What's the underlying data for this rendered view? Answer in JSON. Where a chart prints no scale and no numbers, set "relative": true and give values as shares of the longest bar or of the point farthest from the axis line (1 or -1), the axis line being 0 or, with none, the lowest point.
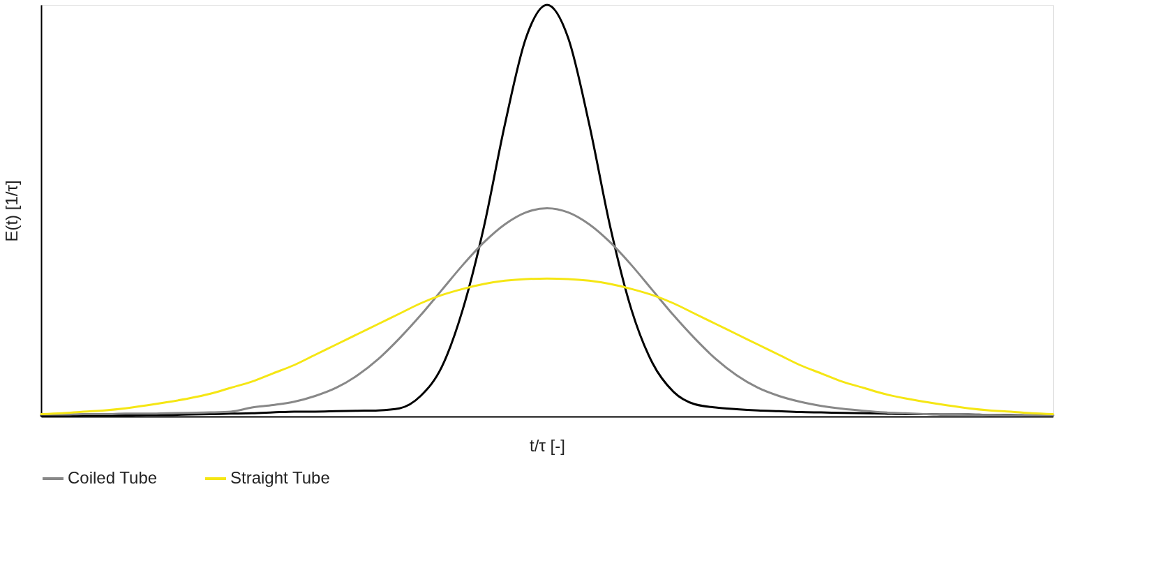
{
  "chart_data": {
    "type": "line",
    "relative": true,
    "xlabel": "t/τ [-]",
    "ylabel": "E(t) [1/τ]",
    "legend": "bottom",
    "grid": false,
    "line_style": "solid",
    "marker": "none",
    "categories": [
      null,
      null,
      null,
      null,
      null,
      null,
      null,
      null,
      null,
      null,
      null,
      null,
      null,
      null,
      null,
      null,
      null,
      null,
      null,
      null,
      null,
      null,
      null,
      null,
      null,
      null,
      null,
      null,
      null,
      null,
      null,
      null,
      null,
      null,
      null,
      null,
      null,
      null,
      null,
      null,
      null,
      null,
      null,
      null,
      null,
      null,
      null,
      null,
      null
    ],
    "series": [
      {
        "color": "#000000",
        "values": [
          0.002,
          0.002,
          0.003,
          0.003,
          0.003,
          0.004,
          0.004,
          0.005,
          0.006,
          0.007,
          0.008,
          0.01,
          0.012,
          0.012,
          0.013,
          0.014,
          0.015,
          0.02,
          0.05,
          0.12,
          0.26,
          0.46,
          0.71,
          0.92,
          1.0,
          0.92,
          0.71,
          0.46,
          0.26,
          0.13,
          0.06,
          0.03,
          0.022,
          0.018,
          0.015,
          0.013,
          0.011,
          0.01,
          0.009,
          0.008,
          0.007,
          0.006,
          0.006,
          0.005,
          0.005,
          0.004,
          0.004,
          0.003,
          0.003
        ]
      },
      {
        "name": "Coiled Tube",
        "color": "#888888",
        "values": [
          0.005,
          0.005,
          0.006,
          0.006,
          0.007,
          0.007,
          0.008,
          0.009,
          0.01,
          0.012,
          0.022,
          0.028,
          0.036,
          0.05,
          0.07,
          0.1,
          0.14,
          0.19,
          0.246,
          0.307,
          0.368,
          0.423,
          0.467,
          0.496,
          0.506,
          0.496,
          0.467,
          0.423,
          0.368,
          0.307,
          0.246,
          0.19,
          0.14,
          0.1,
          0.07,
          0.05,
          0.036,
          0.026,
          0.019,
          0.014,
          0.01,
          0.008,
          0.006,
          0.005,
          0.004,
          0.004,
          0.003,
          0.003,
          0.003
        ]
      },
      {
        "name": "Straight Tube",
        "color": "#f5e614",
        "values": [
          0.006,
          0.008,
          0.012,
          0.015,
          0.02,
          0.027,
          0.035,
          0.044,
          0.055,
          0.07,
          0.085,
          0.105,
          0.125,
          0.15,
          0.175,
          0.2,
          0.225,
          0.25,
          0.275,
          0.295,
          0.31,
          0.322,
          0.33,
          0.334,
          0.335,
          0.334,
          0.33,
          0.322,
          0.31,
          0.295,
          0.275,
          0.25,
          0.225,
          0.2,
          0.175,
          0.15,
          0.125,
          0.105,
          0.085,
          0.07,
          0.055,
          0.044,
          0.035,
          0.027,
          0.02,
          0.015,
          0.012,
          0.008,
          0.006
        ]
      }
    ]
  }
}
